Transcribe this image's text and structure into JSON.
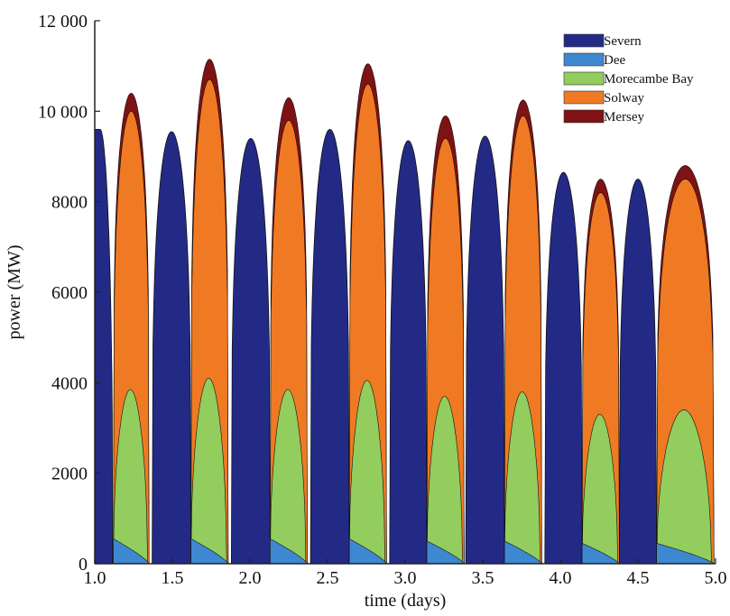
{
  "chart_data": {
    "type": "area",
    "stacked": true,
    "title": "",
    "xlabel": "time (days)",
    "ylabel": "power (MW)",
    "xlim": [
      1.0,
      5.0
    ],
    "ylim": [
      0,
      12000
    ],
    "xticks": [
      1.0,
      1.5,
      2.0,
      2.5,
      3.0,
      3.5,
      4.0,
      4.5,
      5.0
    ],
    "xtick_labels": [
      "1.0",
      "1.5",
      "2.0",
      "2.5",
      "3.0",
      "3.5",
      "4.0",
      "4.5",
      "5.0"
    ],
    "yticks": [
      0,
      2000,
      4000,
      6000,
      8000,
      10000,
      12000
    ],
    "ytick_labels": [
      "0",
      "2000",
      "4000",
      "6000",
      "8000",
      "10 000",
      "12 000"
    ],
    "grid": false,
    "legend_position": "top-right",
    "series": [
      {
        "name": "Severn",
        "color": "#232a86"
      },
      {
        "name": "Dee",
        "color": "#3e88d2"
      },
      {
        "name": "Morecambe Bay",
        "color": "#92cd5e"
      },
      {
        "name": "Solway",
        "color": "#f07a23"
      },
      {
        "name": "Mersey",
        "color": "#7f1214"
      }
    ],
    "severn_pulses": [
      {
        "start": 1.0,
        "end": 1.115,
        "peak": 9600
      },
      {
        "start": 1.37,
        "end": 1.62,
        "peak": 9550
      },
      {
        "start": 1.88,
        "end": 2.13,
        "peak": 9400
      },
      {
        "start": 2.39,
        "end": 2.64,
        "peak": 9600
      },
      {
        "start": 2.9,
        "end": 3.14,
        "peak": 9350
      },
      {
        "start": 3.39,
        "end": 3.64,
        "peak": 9450
      },
      {
        "start": 3.9,
        "end": 4.14,
        "peak": 8650
      },
      {
        "start": 4.38,
        "end": 4.62,
        "peak": 8500
      }
    ],
    "stack_pulses": [
      {
        "start": 1.12,
        "end": 1.35,
        "dee": 550,
        "morecambe": 3850,
        "solway": 10000,
        "mersey": 10400
      },
      {
        "start": 1.62,
        "end": 1.86,
        "dee": 550,
        "morecambe": 4100,
        "solway": 10700,
        "mersey": 11150
      },
      {
        "start": 2.13,
        "end": 2.37,
        "dee": 550,
        "morecambe": 3850,
        "solway": 9800,
        "mersey": 10300
      },
      {
        "start": 2.64,
        "end": 2.88,
        "dee": 550,
        "morecambe": 4050,
        "solway": 10600,
        "mersey": 11050
      },
      {
        "start": 3.14,
        "end": 3.38,
        "dee": 500,
        "morecambe": 3700,
        "solway": 9400,
        "mersey": 9900
      },
      {
        "start": 3.64,
        "end": 3.88,
        "dee": 500,
        "morecambe": 3800,
        "solway": 9900,
        "mersey": 10250
      },
      {
        "start": 4.14,
        "end": 4.38,
        "dee": 450,
        "morecambe": 3300,
        "solway": 8200,
        "mersey": 8500
      },
      {
        "start": 4.62,
        "end": 4.99,
        "dee": 450,
        "morecambe": 3400,
        "solway": 8500,
        "mersey": 8800
      }
    ]
  }
}
